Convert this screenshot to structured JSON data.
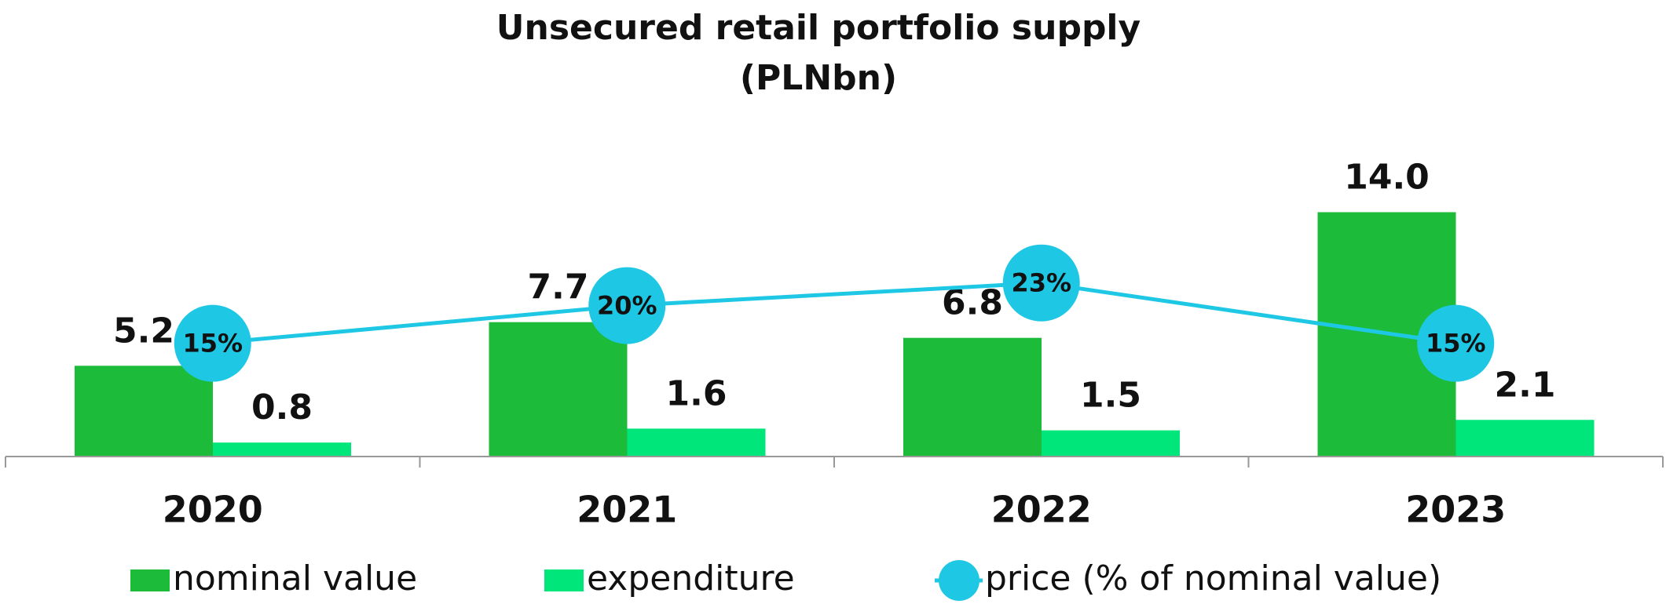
{
  "chart_data": {
    "type": "bar",
    "title": "Unsecured retail portfolio supply",
    "subtitle": "(PLNbn)",
    "categories": [
      "2020",
      "2021",
      "2022",
      "2023"
    ],
    "ylim": [
      0,
      16
    ],
    "y2lim": [
      0,
      37
    ],
    "series": [
      {
        "name": "nominal value",
        "color": "#1dbb3a",
        "values": [
          5.2,
          7.7,
          6.8,
          14.0
        ],
        "value_labels": [
          "5.2",
          "7.7",
          "6.8",
          "14.0"
        ]
      },
      {
        "name": "expenditure",
        "color": "#00e67a",
        "values": [
          0.8,
          1.6,
          1.5,
          2.1
        ],
        "value_labels": [
          "0.8",
          "1.6",
          "1.5",
          "2.1"
        ]
      },
      {
        "name": "price (% of nominal value)",
        "type": "line",
        "axis": "y2",
        "color": "#1ec8e5",
        "values": [
          15,
          20,
          23,
          15
        ],
        "value_labels": [
          "15%",
          "20%",
          "23%",
          "15%"
        ]
      }
    ]
  }
}
